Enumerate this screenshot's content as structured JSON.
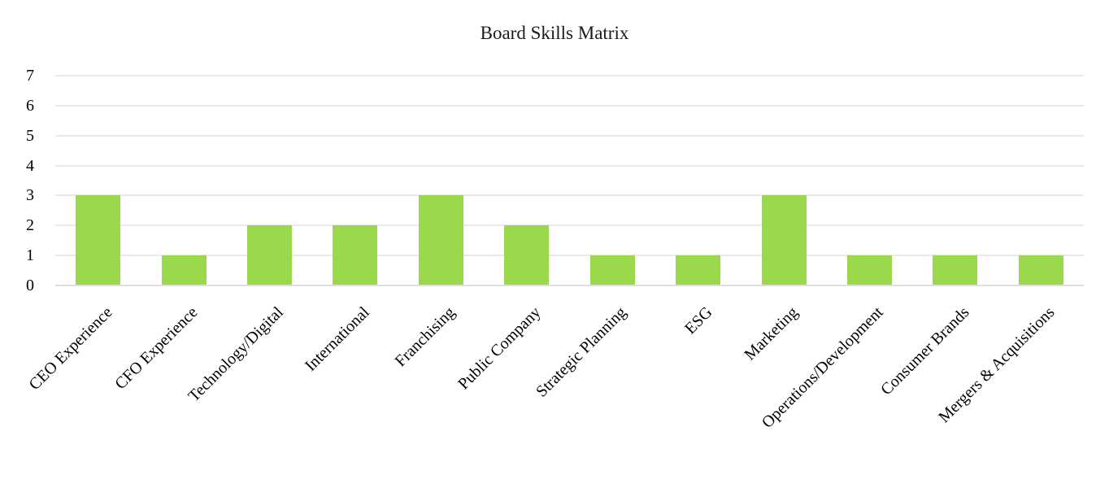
{
  "title": "Board Skills Matrix",
  "colors": {
    "bar_fill": "#9ad94c",
    "gridline": "#e9e9e9",
    "axis_line": "#dedede",
    "text": "#1a1a1a",
    "background": "#ffffff"
  },
  "chart_data": {
    "type": "bar",
    "title": "Board Skills Matrix",
    "categories": [
      "CEO Experience",
      "CFO Experience",
      "Technology/Digital",
      "International",
      "Franchising",
      "Public Company",
      "Strategic Planning",
      "ESG",
      "Marketing",
      "Operations/Development",
      "Consumer Brands",
      "Mergers & Acquisitions"
    ],
    "values": [
      3,
      1,
      2,
      2,
      3,
      2,
      1,
      1,
      3,
      1,
      1,
      1
    ],
    "xlabel": "",
    "ylabel": "",
    "ylim": [
      0,
      7
    ],
    "yticks": [
      0,
      1,
      2,
      3,
      4,
      5,
      6,
      7
    ],
    "grid": "horizontal",
    "legend": "none",
    "x_label_rotation_deg": 45,
    "bar_color": "#9ad94c"
  }
}
